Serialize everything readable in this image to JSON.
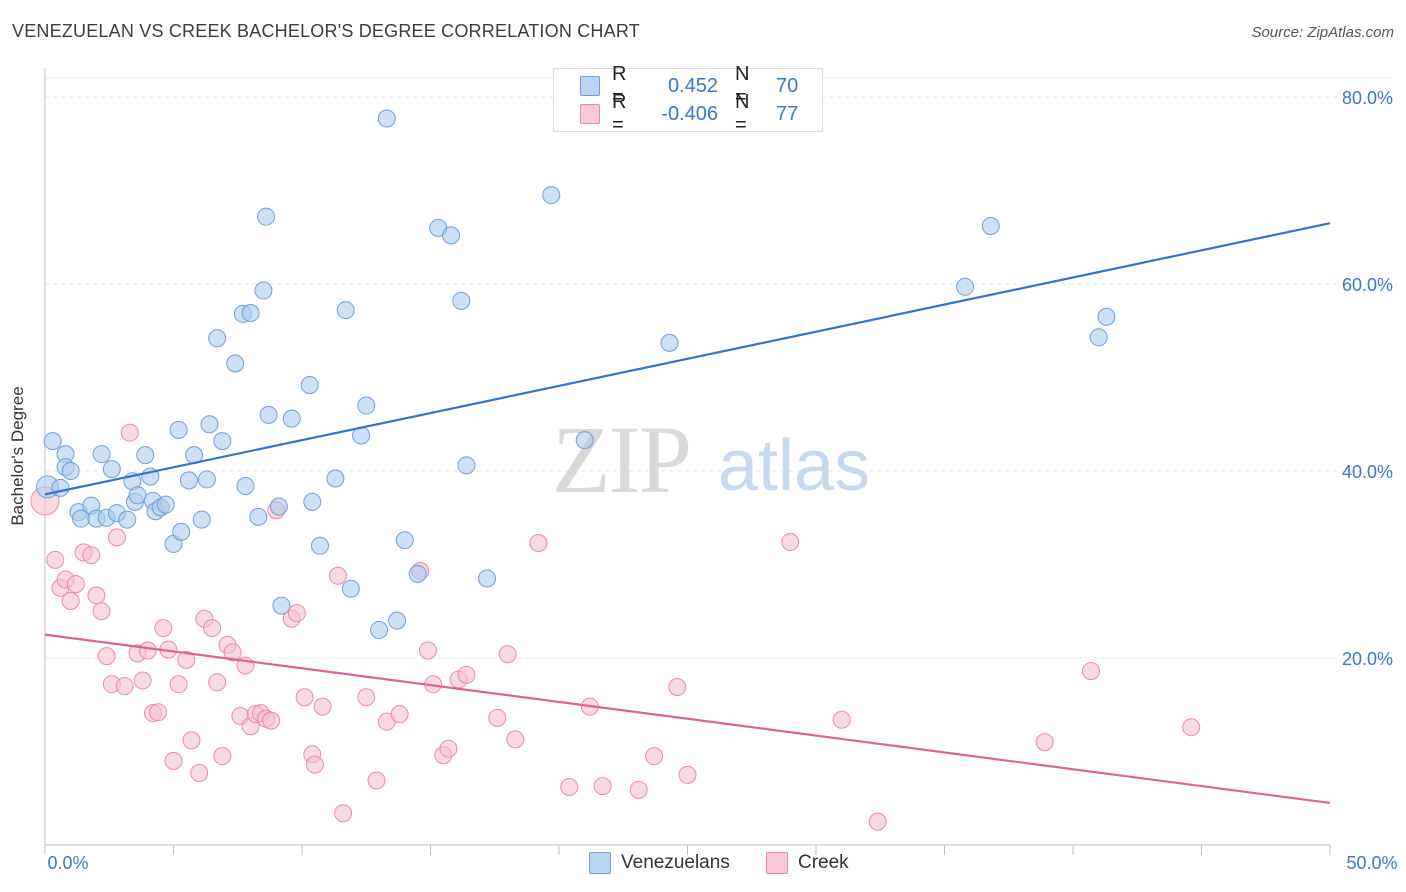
{
  "header": {
    "title": "VENEZUELAN VS CREEK BACHELOR'S DEGREE CORRELATION CHART",
    "source": "Source: ZipAtlas.com"
  },
  "watermark": {
    "zip": "ZIP",
    "atlas": "atlas"
  },
  "legend_top": {
    "r_label": "R =",
    "n_label": "N =",
    "rows": [
      {
        "name": "Venezuelans",
        "r": "0.452",
        "n": "70"
      },
      {
        "name": "Creek",
        "r": "-0.406",
        "n": "77"
      }
    ]
  },
  "legend_bottom": {
    "items": [
      "Venezuelans",
      "Creek"
    ]
  },
  "colors": {
    "blue_fill": "#aecbf0",
    "blue_stroke": "#6f9fd8",
    "blue_line": "#2e74d0",
    "blue_text": "#3a78c9",
    "pink_fill": "#f7bfd0",
    "pink_stroke": "#ec8aa8",
    "pink_line": "#e0609a",
    "pink_text": "#3a78c9",
    "grid": "#e4e4e4",
    "axis": "#bdbdbd"
  },
  "chart_data": {
    "type": "scatter",
    "title": "VENEZUELAN VS CREEK BACHELOR'S DEGREE CORRELATION CHART",
    "xlabel": "",
    "ylabel": "Bachelor's Degree",
    "xlim": [
      0,
      50
    ],
    "ylim": [
      0,
      80
    ],
    "x_tick_labels": [
      "0.0%",
      "50.0%"
    ],
    "y_tick_values": [
      20,
      40,
      60,
      80
    ],
    "y_tick_labels": [
      "20.0%",
      "40.0%",
      "60.0%",
      "80.0%"
    ],
    "grid": true,
    "series": [
      {
        "name": "Venezuelans",
        "r": 0.452,
        "n": 70,
        "trend": {
          "x": [
            0,
            50
          ],
          "y": [
            37.5,
            66.5
          ]
        },
        "points": [
          [
            0.1,
            38.3
          ],
          [
            0.3,
            43.2
          ],
          [
            0.6,
            38.2
          ],
          [
            0.8,
            41.8
          ],
          [
            0.8,
            40.4
          ],
          [
            1.0,
            40.0
          ],
          [
            1.3,
            35.6
          ],
          [
            1.4,
            34.9
          ],
          [
            1.8,
            36.3
          ],
          [
            2.0,
            34.9
          ],
          [
            2.2,
            41.8
          ],
          [
            2.4,
            35.0
          ],
          [
            2.6,
            40.2
          ],
          [
            2.8,
            35.5
          ],
          [
            3.2,
            34.8
          ],
          [
            3.4,
            38.9
          ],
          [
            3.5,
            36.7
          ],
          [
            3.6,
            37.4
          ],
          [
            3.9,
            41.7
          ],
          [
            4.1,
            39.4
          ],
          [
            4.2,
            36.8
          ],
          [
            4.3,
            35.7
          ],
          [
            4.5,
            36.1
          ],
          [
            4.7,
            36.4
          ],
          [
            5.0,
            32.2
          ],
          [
            5.2,
            44.4
          ],
          [
            5.3,
            33.5
          ],
          [
            5.6,
            39.0
          ],
          [
            5.8,
            41.7
          ],
          [
            6.1,
            34.8
          ],
          [
            6.3,
            39.1
          ],
          [
            6.4,
            45.0
          ],
          [
            6.7,
            54.2
          ],
          [
            6.9,
            43.2
          ],
          [
            7.4,
            51.5
          ],
          [
            7.8,
            38.4
          ],
          [
            7.7,
            56.8
          ],
          [
            8.0,
            56.9
          ],
          [
            8.3,
            35.1
          ],
          [
            8.5,
            59.3
          ],
          [
            8.6,
            67.2
          ],
          [
            8.7,
            46.0
          ],
          [
            9.1,
            36.2
          ],
          [
            9.2,
            25.6
          ],
          [
            9.6,
            45.6
          ],
          [
            10.3,
            49.2
          ],
          [
            10.4,
            36.7
          ],
          [
            10.7,
            32.0
          ],
          [
            11.3,
            39.2
          ],
          [
            11.7,
            57.2
          ],
          [
            11.9,
            27.4
          ],
          [
            12.3,
            43.8
          ],
          [
            12.5,
            47.0
          ],
          [
            13.0,
            23.0
          ],
          [
            13.3,
            77.7
          ],
          [
            13.7,
            24.0
          ],
          [
            14.0,
            32.6
          ],
          [
            14.5,
            29.0
          ],
          [
            15.3,
            66.0
          ],
          [
            15.8,
            65.2
          ],
          [
            16.2,
            58.2
          ],
          [
            16.4,
            40.6
          ],
          [
            17.2,
            28.5
          ],
          [
            19.7,
            69.5
          ],
          [
            21.0,
            43.3
          ],
          [
            24.3,
            53.7
          ],
          [
            35.8,
            59.7
          ],
          [
            36.8,
            66.2
          ],
          [
            41.0,
            54.3
          ],
          [
            41.3,
            56.5
          ]
        ]
      },
      {
        "name": "Creek",
        "r": -0.406,
        "n": 77,
        "trend": {
          "x": [
            0,
            50
          ],
          "y": [
            22.5,
            4.5
          ]
        },
        "points": [
          [
            0.0,
            36.8
          ],
          [
            0.4,
            30.5
          ],
          [
            0.6,
            27.5
          ],
          [
            0.8,
            28.4
          ],
          [
            1.0,
            26.1
          ],
          [
            1.2,
            27.9
          ],
          [
            1.5,
            31.3
          ],
          [
            1.8,
            31.0
          ],
          [
            2.0,
            26.7
          ],
          [
            2.2,
            25.0
          ],
          [
            2.4,
            20.2
          ],
          [
            2.6,
            17.2
          ],
          [
            2.8,
            32.9
          ],
          [
            3.1,
            17.0
          ],
          [
            3.3,
            44.1
          ],
          [
            3.6,
            20.5
          ],
          [
            3.8,
            17.6
          ],
          [
            4.0,
            20.8
          ],
          [
            4.2,
            14.1
          ],
          [
            4.4,
            14.2
          ],
          [
            4.6,
            23.2
          ],
          [
            4.8,
            20.9
          ],
          [
            5.0,
            9.0
          ],
          [
            5.2,
            17.2
          ],
          [
            5.5,
            19.8
          ],
          [
            5.7,
            11.2
          ],
          [
            6.0,
            7.7
          ],
          [
            6.2,
            24.2
          ],
          [
            6.5,
            23.2
          ],
          [
            6.7,
            17.4
          ],
          [
            6.9,
            9.5
          ],
          [
            7.1,
            21.4
          ],
          [
            7.3,
            20.6
          ],
          [
            7.6,
            13.8
          ],
          [
            7.8,
            19.2
          ],
          [
            8.0,
            12.7
          ],
          [
            8.2,
            14.0
          ],
          [
            8.4,
            14.1
          ],
          [
            8.6,
            13.5
          ],
          [
            8.8,
            13.3
          ],
          [
            9.0,
            35.8
          ],
          [
            9.6,
            24.2
          ],
          [
            9.8,
            24.8
          ],
          [
            10.1,
            15.8
          ],
          [
            10.4,
            9.7
          ],
          [
            10.5,
            8.6
          ],
          [
            10.8,
            14.8
          ],
          [
            11.4,
            28.8
          ],
          [
            11.6,
            3.4
          ],
          [
            12.5,
            15.8
          ],
          [
            12.9,
            6.9
          ],
          [
            13.3,
            13.2
          ],
          [
            13.8,
            14.0
          ],
          [
            14.6,
            29.3
          ],
          [
            14.9,
            20.8
          ],
          [
            15.1,
            17.2
          ],
          [
            15.5,
            9.6
          ],
          [
            15.7,
            10.3
          ],
          [
            16.1,
            17.7
          ],
          [
            16.4,
            18.2
          ],
          [
            17.6,
            13.6
          ],
          [
            18.0,
            20.4
          ],
          [
            18.3,
            11.3
          ],
          [
            19.2,
            32.3
          ],
          [
            20.4,
            6.2
          ],
          [
            21.2,
            14.8
          ],
          [
            21.7,
            6.3
          ],
          [
            23.1,
            5.9
          ],
          [
            23.7,
            9.5
          ],
          [
            24.6,
            16.9
          ],
          [
            25.0,
            7.5
          ],
          [
            29.0,
            32.4
          ],
          [
            31.0,
            13.4
          ],
          [
            32.4,
            2.5
          ],
          [
            38.9,
            11.0
          ],
          [
            40.7,
            18.6
          ],
          [
            44.6,
            12.6
          ]
        ]
      }
    ]
  }
}
